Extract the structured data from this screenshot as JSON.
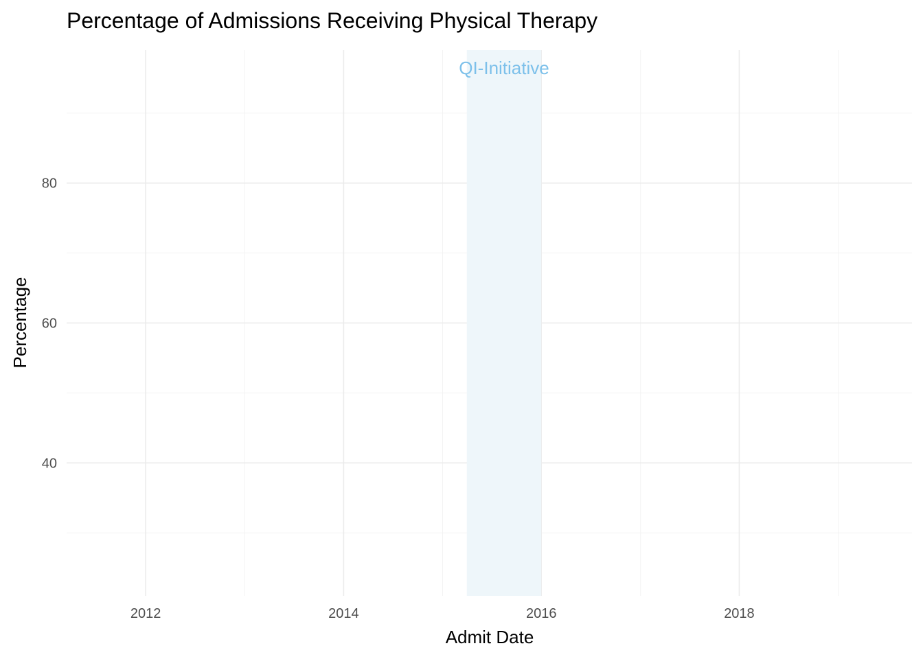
{
  "chart_data": {
    "type": "line",
    "title": "Percentage of Admissions Receiving Physical Therapy",
    "xlabel": "Admit Date",
    "ylabel": "Percentage",
    "xlim": [
      "2011-03-15",
      "2019-10-01"
    ],
    "ylim": [
      21,
      99
    ],
    "x_ticks": [
      "2012-01-01",
      "2014-01-01",
      "2016-01-01",
      "2018-01-01"
    ],
    "x_tick_labels": [
      "2012",
      "2014",
      "2016",
      "2018"
    ],
    "y_ticks": [
      40,
      60,
      80
    ],
    "y_tick_labels": [
      "40",
      "60",
      "80"
    ],
    "grid": true,
    "series": [],
    "annotations": [
      {
        "type": "shaded-region",
        "label": "QI-Initiative",
        "x_start": "2015-04-01",
        "x_end": "2016-01-01",
        "fill_color": "#eef6fa",
        "label_color": "#7cc0ea"
      }
    ]
  }
}
